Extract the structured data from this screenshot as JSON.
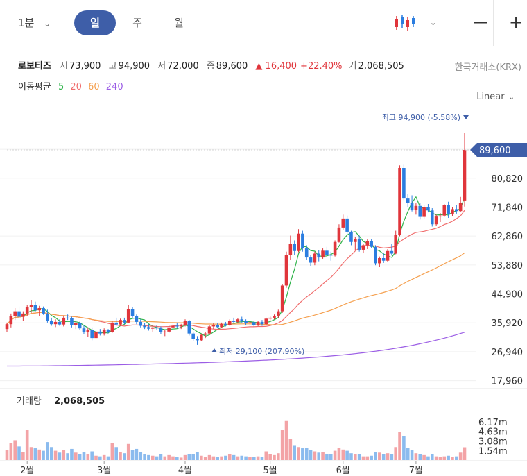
{
  "toolbar": {
    "interval_label": "1분",
    "tabs": [
      "일",
      "주",
      "월"
    ],
    "active_tab": "일",
    "chart_type_icon": "candlestick-icon",
    "zoom_out_icon": "minus-icon",
    "zoom_in_icon": "plus-icon"
  },
  "stock": {
    "name": "로보티즈",
    "open_label": "시",
    "open": "73,900",
    "high_label": "고",
    "high": "94,900",
    "low_label": "저",
    "low": "72,000",
    "close_label": "종",
    "close": "89,600",
    "change": "▲ 16,400",
    "change_pct": "+22.40%",
    "volume_label": "거",
    "volume": "2,068,505",
    "exchange": "한국거래소(KRX)"
  },
  "moving_average": {
    "label": "이동평균",
    "periods": [
      {
        "value": "5",
        "color": "#2fb34a"
      },
      {
        "value": "20",
        "color": "#f06c6c"
      },
      {
        "value": "60",
        "color": "#f5a04f"
      },
      {
        "value": "240",
        "color": "#9b5de5"
      }
    ]
  },
  "scale_mode": "Linear",
  "colors": {
    "up": "#e0353b",
    "down": "#2b7de0",
    "up_volume": "#f3a3a6",
    "down_volume": "#8bbbee",
    "price_tag": "#3e5ea8"
  },
  "chart_data": {
    "type": "candlestick",
    "price_axis": {
      "ticks": [
        17960,
        26940,
        35920,
        44900,
        53880,
        62860,
        71840,
        80820
      ],
      "tick_labels": [
        "17,960",
        "26,940",
        "35,920",
        "44,900",
        "53,880",
        "62,860",
        "71,840",
        "80,820"
      ],
      "range": [
        14000,
        98000
      ]
    },
    "x_axis": {
      "labels": [
        "2월",
        "3월",
        "4월",
        "5월",
        "6월",
        "7월"
      ],
      "label_index": [
        5,
        24,
        44,
        65,
        83,
        101
      ]
    },
    "current_price": {
      "value": 89600,
      "label": "89,600"
    },
    "high_marker": {
      "label": "최고 94,900 (-5.58%)",
      "value": 94900
    },
    "low_marker": {
      "label": "최저 29,100 (207.90%)",
      "value": 29100
    },
    "volume_panel": {
      "title": "거래량",
      "value": "2,068,505",
      "ticks": [
        "6.17m",
        "4.63m",
        "3.08m",
        "1.54m"
      ],
      "tick_values": [
        6170000,
        4630000,
        3080000,
        1540000
      ],
      "max": 8400000
    },
    "candles": [
      [
        34000,
        36000,
        33000,
        35500,
        1.6
      ],
      [
        35500,
        38800,
        34500,
        38000,
        2.8
      ],
      [
        38000,
        40500,
        36800,
        39500,
        3.2
      ],
      [
        39500,
        41000,
        37200,
        37800,
        2.2
      ],
      [
        37800,
        39500,
        36500,
        38800,
        1.3
      ],
      [
        38800,
        41500,
        38000,
        40800,
        4.9
      ],
      [
        40800,
        43000,
        39000,
        41500,
        2.1
      ],
      [
        41500,
        42500,
        39200,
        39800,
        1.9
      ],
      [
        39800,
        41200,
        38000,
        40500,
        1.7
      ],
      [
        40500,
        41000,
        38400,
        38800,
        1.5
      ],
      [
        38800,
        40000,
        36000,
        36500,
        2.9
      ],
      [
        36500,
        37500,
        35000,
        35500,
        2.1
      ],
      [
        35500,
        37000,
        34600,
        36200,
        1.5
      ],
      [
        36200,
        37000,
        35000,
        35400,
        1.2
      ],
      [
        35400,
        38000,
        34800,
        37500,
        1.6
      ],
      [
        37500,
        38500,
        36800,
        37300,
        1.1
      ],
      [
        37300,
        37800,
        34500,
        35200,
        1.8
      ],
      [
        35200,
        36500,
        34000,
        35800,
        1.2
      ],
      [
        35800,
        36300,
        33800,
        34200,
        1.0
      ],
      [
        34200,
        35000,
        32500,
        33000,
        1.3
      ],
      [
        33000,
        34500,
        31500,
        33800,
        0.9
      ],
      [
        33800,
        34500,
        30500,
        31200,
        1.4
      ],
      [
        31200,
        33500,
        30800,
        33200,
        0.7
      ],
      [
        33200,
        34000,
        32000,
        32600,
        0.6
      ],
      [
        32600,
        34200,
        32000,
        33700,
        0.8
      ],
      [
        33700,
        34000,
        32600,
        33100,
        0.6
      ],
      [
        33100,
        36500,
        32800,
        36000,
        2.8
      ],
      [
        36000,
        37500,
        35000,
        35400,
        2.1
      ],
      [
        35400,
        37200,
        35000,
        36800,
        1.3
      ],
      [
        36800,
        37500,
        35500,
        36000,
        1.1
      ],
      [
        36000,
        41500,
        35800,
        40200,
        2.6
      ],
      [
        40200,
        40800,
        37500,
        38000,
        1.6
      ],
      [
        38000,
        38500,
        35500,
        36200,
        1.8
      ],
      [
        36200,
        37000,
        34500,
        35000,
        1.3
      ],
      [
        35000,
        35800,
        34000,
        34600,
        0.9
      ],
      [
        34600,
        35500,
        33500,
        34100,
        0.8
      ],
      [
        34100,
        35200,
        33000,
        34500,
        0.7
      ],
      [
        34500,
        35300,
        33600,
        34200,
        0.6
      ],
      [
        34200,
        34800,
        32500,
        33000,
        0.9
      ],
      [
        33000,
        33800,
        31800,
        33200,
        0.6
      ],
      [
        33200,
        35000,
        32800,
        34500,
        0.8
      ],
      [
        34500,
        35500,
        33800,
        35000,
        0.6
      ],
      [
        35000,
        36000,
        34200,
        34800,
        0.5
      ],
      [
        34800,
        35600,
        34000,
        35300,
        0.4
      ],
      [
        35300,
        37000,
        34800,
        36400,
        0.8
      ],
      [
        36400,
        36800,
        32000,
        32600,
        0.9
      ],
      [
        32600,
        33200,
        30200,
        31000,
        1.0
      ],
      [
        31000,
        31800,
        29100,
        30500,
        1.3
      ],
      [
        30500,
        32500,
        30200,
        32200,
        0.7
      ],
      [
        32200,
        33000,
        31200,
        32600,
        0.5
      ],
      [
        32600,
        35200,
        32300,
        34800,
        0.8
      ],
      [
        34800,
        35800,
        34000,
        35200,
        0.6
      ],
      [
        35200,
        35800,
        34200,
        34600,
        0.5
      ],
      [
        34600,
        36000,
        34300,
        35600,
        0.6
      ],
      [
        35600,
        36200,
        34800,
        35200,
        0.7
      ],
      [
        35200,
        37000,
        35000,
        36600,
        1.0
      ],
      [
        36600,
        37500,
        35800,
        36200,
        0.8
      ],
      [
        36200,
        37400,
        35800,
        37000,
        0.6
      ],
      [
        37000,
        37800,
        36000,
        36400,
        0.7
      ],
      [
        36400,
        37000,
        35200,
        35800,
        0.6
      ],
      [
        35800,
        36500,
        35000,
        36100,
        0.5
      ],
      [
        36100,
        36600,
        34800,
        35200,
        0.5
      ],
      [
        35200,
        36500,
        34900,
        36200,
        0.6
      ],
      [
        36200,
        36800,
        35000,
        35500,
        0.5
      ],
      [
        35500,
        37500,
        35300,
        37200,
        1.4
      ],
      [
        37200,
        38000,
        36500,
        37500,
        0.9
      ],
      [
        37500,
        38500,
        37000,
        38000,
        0.8
      ],
      [
        38000,
        40000,
        37500,
        39500,
        1.1
      ],
      [
        39500,
        48000,
        39000,
        47500,
        4.9
      ],
      [
        47500,
        58000,
        46800,
        57000,
        6.3
      ],
      [
        57000,
        63000,
        55500,
        60500,
        3.4
      ],
      [
        60500,
        61500,
        57000,
        58200,
        2.3
      ],
      [
        58200,
        65000,
        57800,
        63600,
        2.1
      ],
      [
        63600,
        64500,
        58000,
        59000,
        1.9
      ],
      [
        59000,
        60000,
        55500,
        56200,
        2.0
      ],
      [
        56200,
        57000,
        53500,
        54600,
        1.6
      ],
      [
        54600,
        58000,
        53800,
        57400,
        1.4
      ],
      [
        57400,
        58500,
        55000,
        56200,
        1.2
      ],
      [
        56200,
        59000,
        55800,
        58300,
        1.3
      ],
      [
        58300,
        59500,
        56500,
        57000,
        1.0
      ],
      [
        57000,
        58000,
        55200,
        56800,
        0.9
      ],
      [
        56800,
        61500,
        56500,
        61000,
        1.5
      ],
      [
        61000,
        66500,
        60800,
        65500,
        2.0
      ],
      [
        65500,
        69500,
        64800,
        68300,
        1.7
      ],
      [
        68300,
        69200,
        63500,
        64200,
        1.5
      ],
      [
        64200,
        64500,
        60000,
        61000,
        1.1
      ],
      [
        61000,
        62500,
        58500,
        62000,
        0.9
      ],
      [
        62000,
        63000,
        58000,
        58600,
        0.9
      ],
      [
        58600,
        60500,
        57500,
        60000,
        0.6
      ],
      [
        60000,
        61800,
        58800,
        61200,
        0.6
      ],
      [
        61200,
        62000,
        59200,
        59500,
        0.7
      ],
      [
        59500,
        60000,
        53800,
        54400,
        1.3
      ],
      [
        54400,
        56500,
        53200,
        56000,
        1.2
      ],
      [
        56000,
        57500,
        54500,
        55200,
        0.9
      ],
      [
        55200,
        58800,
        54800,
        58200,
        1.1
      ],
      [
        58200,
        60500,
        56800,
        57400,
        1.0
      ],
      [
        57400,
        64500,
        57200,
        63200,
        2.1
      ],
      [
        63200,
        84800,
        62800,
        84000,
        4.5
      ],
      [
        84000,
        85000,
        74000,
        74500,
        3.9
      ],
      [
        74500,
        76000,
        71800,
        73200,
        2.0
      ],
      [
        73200,
        75500,
        70500,
        71000,
        1.6
      ],
      [
        71000,
        73000,
        69500,
        72200,
        1.1
      ],
      [
        72200,
        73000,
        68000,
        68800,
        0.9
      ],
      [
        68800,
        72500,
        68300,
        71900,
        0.8
      ],
      [
        71900,
        72800,
        70200,
        70800,
        0.6
      ],
      [
        70800,
        71500,
        65800,
        66500,
        0.9
      ],
      [
        66500,
        69500,
        66000,
        68900,
        0.6
      ],
      [
        68900,
        70000,
        67200,
        69200,
        0.5
      ],
      [
        69200,
        72800,
        68800,
        72400,
        0.6
      ],
      [
        72400,
        73500,
        68500,
        69800,
        0.7
      ],
      [
        69800,
        71800,
        69000,
        71200,
        0.5
      ],
      [
        71200,
        72500,
        69800,
        70600,
        0.6
      ],
      [
        70600,
        75000,
        70300,
        73200,
        1.2
      ],
      [
        73900,
        94900,
        72000,
        89600,
        2.07
      ]
    ],
    "volume_unit": "m"
  }
}
